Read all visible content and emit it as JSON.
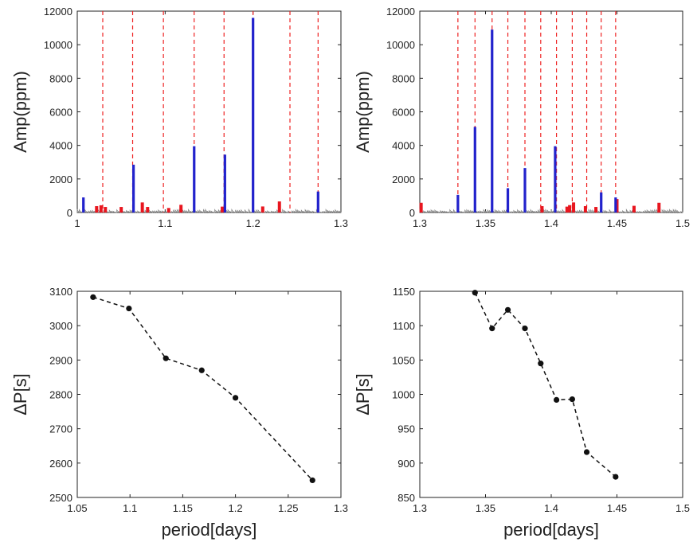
{
  "chart_data": [
    {
      "type": "bar",
      "ylabel": "Amp(ppm)",
      "xlim": [
        1.0,
        1.3
      ],
      "ylim": [
        0,
        12000
      ],
      "xticks": [
        "1",
        "1.1",
        "1.2",
        "1.3"
      ],
      "yticks": [
        "0",
        "2000",
        "4000",
        "6000",
        "8000",
        "10000",
        "12000"
      ],
      "dashed_lines_x": [
        1.029,
        1.063,
        1.098,
        1.133,
        1.167,
        1.2,
        1.242,
        1.274
      ],
      "blue_bars": [
        [
          1.007,
          900
        ],
        [
          1.064,
          2850
        ],
        [
          1.133,
          3950
        ],
        [
          1.168,
          3450
        ],
        [
          1.2,
          11600
        ],
        [
          1.274,
          1250
        ]
      ],
      "red_bars": [
        [
          1.022,
          380
        ],
        [
          1.027,
          430
        ],
        [
          1.032,
          330
        ],
        [
          1.05,
          330
        ],
        [
          1.074,
          600
        ],
        [
          1.08,
          330
        ],
        [
          1.104,
          270
        ],
        [
          1.118,
          460
        ],
        [
          1.165,
          350
        ],
        [
          1.211,
          360
        ],
        [
          1.23,
          660
        ]
      ],
      "noise_level": 150
    },
    {
      "type": "bar",
      "ylabel": "Amp(ppm)",
      "xlim": [
        1.3,
        1.5
      ],
      "ylim": [
        0,
        12000
      ],
      "xticks": [
        "1.3",
        "1.35",
        "1.4",
        "1.45",
        "1.5"
      ],
      "yticks": [
        "0",
        "2000",
        "4000",
        "6000",
        "8000",
        "10000",
        "12000"
      ],
      "dashed_lines_x": [
        1.329,
        1.342,
        1.355,
        1.367,
        1.38,
        1.392,
        1.404,
        1.416,
        1.427,
        1.438,
        1.449
      ],
      "blue_bars": [
        [
          1.329,
          1050
        ],
        [
          1.342,
          5100
        ],
        [
          1.355,
          10900
        ],
        [
          1.367,
          1450
        ],
        [
          1.38,
          2650
        ],
        [
          1.403,
          3950
        ],
        [
          1.438,
          1200
        ],
        [
          1.449,
          900
        ]
      ],
      "red_bars": [
        [
          1.301,
          580
        ],
        [
          1.393,
          380
        ],
        [
          1.412,
          350
        ],
        [
          1.414,
          440
        ],
        [
          1.417,
          600
        ],
        [
          1.426,
          380
        ],
        [
          1.434,
          330
        ],
        [
          1.45,
          800
        ],
        [
          1.463,
          400
        ],
        [
          1.482,
          580
        ]
      ],
      "noise_level": 150
    },
    {
      "type": "line",
      "xlabel": "period[days]",
      "ylabel": "ΔP[s]",
      "xlim": [
        1.05,
        1.3
      ],
      "ylim": [
        2500,
        3100
      ],
      "xticks": [
        "1.05",
        "1.1",
        "1.15",
        "1.2",
        "1.25",
        "1.3"
      ],
      "yticks": [
        "2500",
        "2600",
        "2700",
        "2800",
        "2900",
        "3000",
        "3100"
      ],
      "x": [
        1.065,
        1.099,
        1.134,
        1.168,
        1.2,
        1.273
      ],
      "y": [
        3083,
        3050,
        2905,
        2870,
        2790,
        2550
      ]
    },
    {
      "type": "line",
      "xlabel": "period[days]",
      "ylabel": "ΔP[s]",
      "xlim": [
        1.3,
        1.5
      ],
      "ylim": [
        850,
        1150
      ],
      "xticks": [
        "1.3",
        "1.35",
        "1.4",
        "1.45",
        "1.5"
      ],
      "yticks": [
        "850",
        "900",
        "950",
        "1000",
        "1050",
        "1100",
        "1150"
      ],
      "x": [
        1.342,
        1.355,
        1.367,
        1.38,
        1.392,
        1.404,
        1.416,
        1.427,
        1.449
      ],
      "y": [
        1148,
        1096,
        1123,
        1096,
        1045,
        992,
        993,
        916,
        880
      ]
    }
  ]
}
